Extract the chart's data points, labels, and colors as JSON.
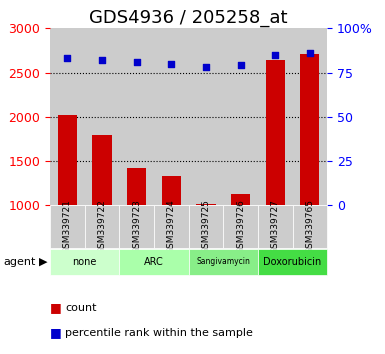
{
  "title": "GDS4936 / 205258_at",
  "samples": [
    "GSM339721",
    "GSM339722",
    "GSM339723",
    "GSM339724",
    "GSM339725",
    "GSM339726",
    "GSM339727",
    "GSM339765"
  ],
  "counts": [
    2020,
    1800,
    1420,
    1330,
    1020,
    1130,
    2640,
    2710
  ],
  "percentile_ranks": [
    83,
    82,
    81,
    80,
    78,
    79,
    85,
    86
  ],
  "ylim_left": [
    1000,
    3000
  ],
  "ylim_right": [
    0,
    100
  ],
  "yticks_left": [
    1000,
    1500,
    2000,
    2500,
    3000
  ],
  "yticks_right": [
    0,
    25,
    50,
    75,
    100
  ],
  "ytick_labels_right": [
    "0",
    "25",
    "50",
    "75",
    "100%"
  ],
  "bar_color": "#cc0000",
  "dot_color": "#0000cc",
  "groups": [
    {
      "label": "none",
      "color": "#ccffcc",
      "samples": [
        0,
        1
      ]
    },
    {
      "label": "ARC",
      "color": "#aaffaa",
      "samples": [
        2,
        3
      ]
    },
    {
      "label": "Sangivamycin",
      "color": "#88ee88",
      "samples": [
        4,
        5
      ]
    },
    {
      "label": "Doxorubicin",
      "color": "#44dd44",
      "samples": [
        6,
        7
      ]
    }
  ],
  "legend_count_label": "count",
  "legend_pct_label": "percentile rank within the sample",
  "agent_label": "agent",
  "sample_bg_color": "#cccccc",
  "title_fontsize": 13,
  "tick_fontsize": 9,
  "label_fontsize": 9
}
